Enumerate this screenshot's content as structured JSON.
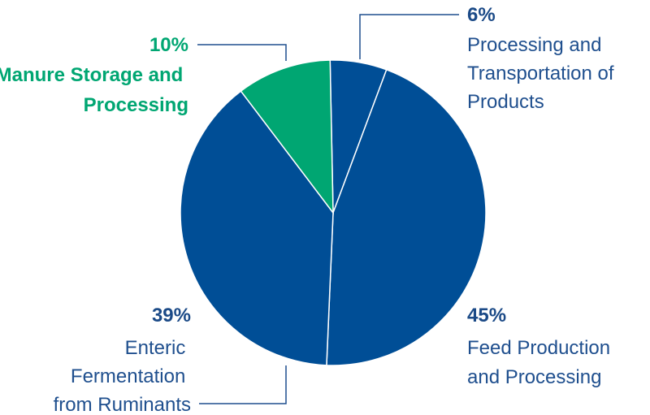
{
  "chart_data": {
    "type": "pie",
    "categories": [
      "Processing and Transportation of Products",
      "Feed Production and Processing",
      "Enteric Fermentation from Ruminants",
      "Manure Storage and Processing"
    ],
    "values": [
      6,
      45,
      39,
      10
    ],
    "value_labels": [
      "6%",
      "45%",
      "39%",
      "10%"
    ],
    "colors": [
      "#004e96",
      "#004e96",
      "#004e96",
      "#00a672"
    ]
  }
}
